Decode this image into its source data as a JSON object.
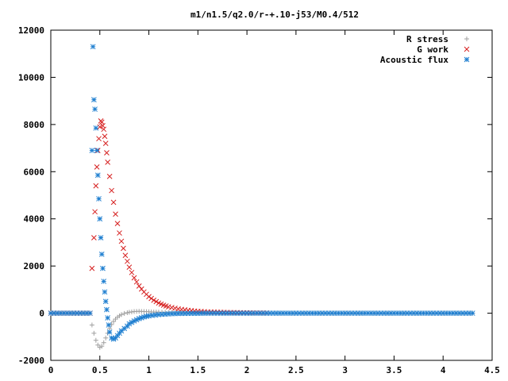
{
  "chart_data": {
    "type": "scatter",
    "title": "m1/n1.5/q2.0/r-+.10-j53/M0.4/512",
    "xlabel": "",
    "ylabel": "",
    "xlim": [
      0,
      4.5
    ],
    "ylim": [
      -2000,
      12000
    ],
    "grid": false,
    "legend_position": "top-right",
    "x_ticks": [
      "0",
      "0.5",
      "1",
      "1.5",
      "2",
      "2.5",
      "3",
      "3.5",
      "4",
      "4.5"
    ],
    "y_ticks": [
      "-2000",
      "0",
      "2000",
      "4000",
      "6000",
      "8000",
      "10000",
      "12000"
    ],
    "series": [
      {
        "name": "R stress",
        "marker": "plus",
        "color": "#a0a0a0",
        "x": [
          0.0,
          0.1,
          0.2,
          0.3,
          0.4,
          0.42,
          0.44,
          0.46,
          0.48,
          0.5,
          0.52,
          0.54,
          0.56,
          0.58,
          0.6,
          0.62,
          0.64,
          0.66,
          0.68,
          0.7,
          0.72,
          0.75,
          0.78,
          0.8,
          0.85,
          0.9,
          0.95,
          1.0,
          1.05,
          1.1,
          1.2,
          1.3,
          1.4,
          1.5,
          1.6,
          1.7,
          1.8,
          1.9,
          2.0,
          2.1,
          2.2,
          2.5,
          3.0,
          3.5,
          4.0,
          4.3
        ],
        "y": [
          0,
          0,
          0,
          0,
          0,
          -500,
          -850,
          -1150,
          -1350,
          -1450,
          -1400,
          -1250,
          -1050,
          -850,
          -650,
          -480,
          -350,
          -250,
          -170,
          -110,
          -60,
          -10,
          20,
          40,
          70,
          80,
          70,
          60,
          50,
          45,
          35,
          25,
          20,
          15,
          10,
          8,
          5,
          4,
          3,
          2,
          2,
          0,
          0,
          0,
          0,
          0
        ]
      },
      {
        "name": "G work",
        "marker": "cross",
        "color": "#d62020",
        "x": [
          0.0,
          0.1,
          0.2,
          0.3,
          0.4,
          0.42,
          0.44,
          0.45,
          0.46,
          0.47,
          0.48,
          0.49,
          0.5,
          0.51,
          0.52,
          0.53,
          0.54,
          0.55,
          0.56,
          0.57,
          0.58,
          0.6,
          0.62,
          0.64,
          0.66,
          0.68,
          0.7,
          0.72,
          0.74,
          0.76,
          0.78,
          0.8,
          0.85,
          0.9,
          0.95,
          1.0,
          1.05,
          1.1,
          1.15,
          1.2,
          1.3,
          1.4,
          1.5,
          1.6,
          1.8,
          2.0,
          2.2
        ],
        "y": [
          0,
          0,
          0,
          0,
          0,
          1900,
          3200,
          4300,
          5400,
          6200,
          6900,
          7400,
          7900,
          8150,
          8100,
          7950,
          7800,
          7500,
          7200,
          6800,
          6400,
          5800,
          5200,
          4700,
          4200,
          3800,
          3400,
          3050,
          2750,
          2450,
          2200,
          1950,
          1500,
          1150,
          900,
          700,
          550,
          430,
          340,
          270,
          180,
          120,
          80,
          55,
          30,
          15,
          8
        ]
      },
      {
        "name": "Acoustic flux",
        "marker": "star",
        "color": "#1f7fd0",
        "x": [
          0.0,
          0.1,
          0.2,
          0.3,
          0.4,
          0.42,
          0.43,
          0.44,
          0.45,
          0.46,
          0.47,
          0.48,
          0.49,
          0.5,
          0.51,
          0.52,
          0.53,
          0.54,
          0.55,
          0.56,
          0.57,
          0.58,
          0.59,
          0.6,
          0.62,
          0.64,
          0.66,
          0.68,
          0.7,
          0.72,
          0.75,
          0.78,
          0.8,
          0.85,
          0.9,
          0.95,
          1.0,
          1.1,
          1.2,
          1.3,
          1.4,
          1.5,
          1.6,
          1.8,
          2.0,
          2.5,
          3.0,
          3.5,
          4.0,
          4.3
        ],
        "y": [
          0,
          0,
          0,
          0,
          0,
          6900,
          11300,
          9050,
          8650,
          7850,
          6900,
          5850,
          4850,
          4000,
          3200,
          2500,
          1900,
          1350,
          900,
          500,
          150,
          -200,
          -500,
          -800,
          -1050,
          -1100,
          -1050,
          -950,
          -850,
          -750,
          -650,
          -550,
          -450,
          -330,
          -230,
          -160,
          -110,
          -60,
          -30,
          -15,
          -8,
          -5,
          0,
          0,
          0,
          0,
          0,
          0,
          0,
          0
        ]
      }
    ]
  }
}
